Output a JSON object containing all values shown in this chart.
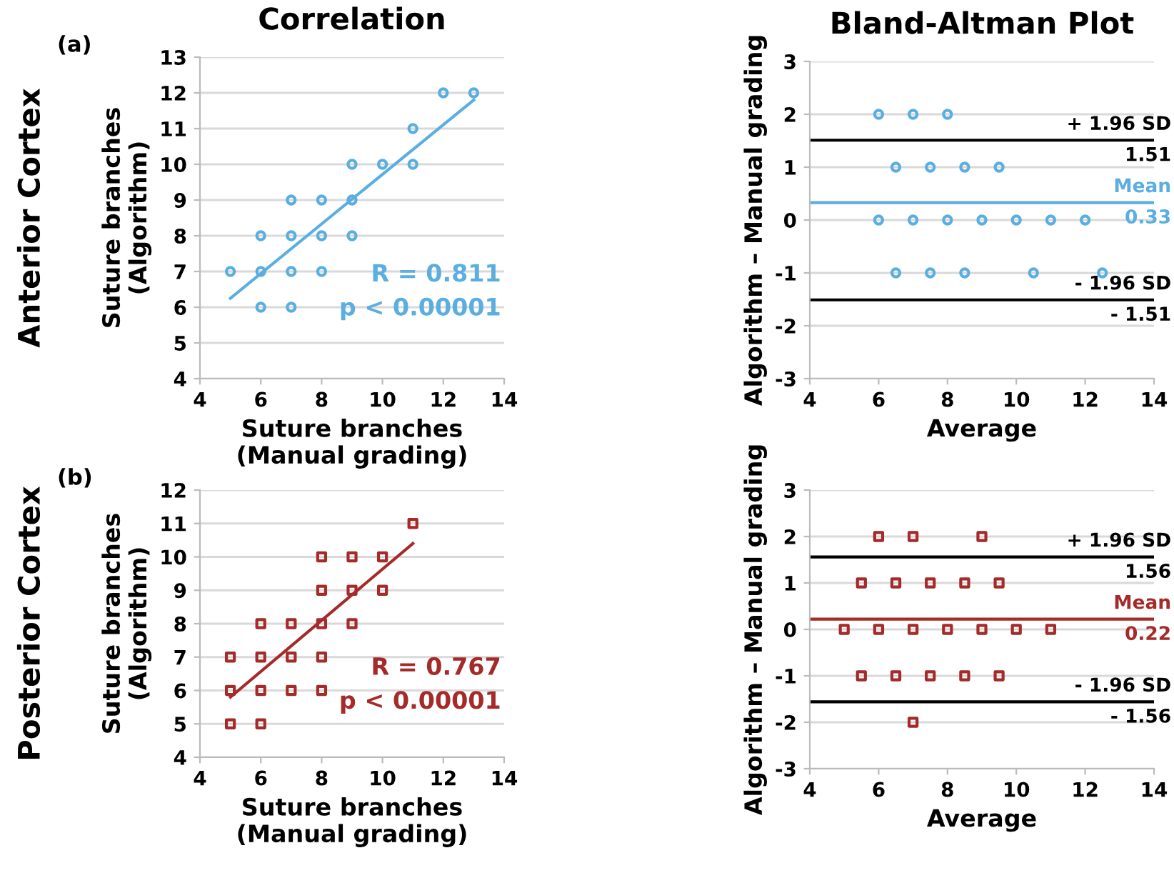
{
  "chart_data": [
    {
      "type": "scatter",
      "title": "Correlation",
      "xlabel": "Suture branches\n(Manual grading)",
      "ylabel": "Suture branches\n(Algorithm)",
      "annotations": [
        "(a)",
        "Anterior Cortex",
        "R = 0.811\np < 0.00001"
      ],
      "xlim": [
        4,
        14
      ],
      "xticks": [
        4,
        6,
        8,
        10,
        12,
        14
      ],
      "ylim": [
        4,
        13
      ],
      "yticks": [
        4,
        5,
        6,
        7,
        8,
        9,
        10,
        11,
        12,
        13
      ],
      "grid": "y",
      "legend": false,
      "series": [
        {
          "marker": "circle",
          "color": "#5aaee0",
          "x": [
            5,
            6,
            6,
            6,
            7,
            7,
            7,
            7,
            8,
            8,
            8,
            9,
            9,
            9,
            10,
            11,
            11,
            12,
            13
          ],
          "values": [
            7,
            8,
            7,
            6,
            9,
            8,
            7,
            6,
            9,
            8,
            7,
            10,
            9,
            8,
            10,
            11,
            10,
            12,
            12
          ]
        },
        {
          "type": "line",
          "marker": "none",
          "line_style": "solid",
          "color": "#5aaee0",
          "x": [
            5,
            13
          ],
          "values": [
            6.25,
            11.8
          ]
        }
      ]
    },
    {
      "type": "scatter",
      "title": "Bland-Altman Plot",
      "xlabel": "Average",
      "ylabel": "Algorithm – Manual grading",
      "xlim": [
        4,
        14
      ],
      "xticks": [
        4,
        6,
        8,
        10,
        12,
        14
      ],
      "ylim": [
        -3,
        3
      ],
      "yticks": [
        -3,
        -2,
        -1,
        0,
        1,
        2,
        3
      ],
      "grid": "y",
      "legend": false,
      "ref_lines": [
        {
          "axis": "y",
          "value": 1.51,
          "label": "+ 1.96 SD\n1.51",
          "color": "#000000"
        },
        {
          "axis": "y",
          "value": 0.33,
          "label": "Mean\n0.33",
          "color": "#5aaee0"
        },
        {
          "axis": "y",
          "value": -1.51,
          "label": "- 1.96 SD\n- 1.51",
          "color": "#000000"
        }
      ],
      "series": [
        {
          "marker": "circle",
          "color": "#5aaee0",
          "x": [
            6,
            7,
            8,
            6.5,
            7.5,
            8.5,
            9.5,
            6,
            7,
            8,
            9,
            10,
            11,
            12,
            6.5,
            7.5,
            8.5,
            10.5,
            12.5
          ],
          "values": [
            2,
            2,
            2,
            1,
            1,
            1,
            1,
            0,
            0,
            0,
            0,
            0,
            0,
            0,
            -1,
            -1,
            -1,
            -1,
            -1
          ]
        }
      ]
    },
    {
      "type": "scatter",
      "xlabel": "Suture branches\n(Manual grading)",
      "ylabel": "Suture branches\n(Algorithm)",
      "annotations": [
        "(b)",
        "Posterior Cortex",
        "R = 0.767\np < 0.00001"
      ],
      "xlim": [
        4,
        14
      ],
      "xticks": [
        4,
        6,
        8,
        10,
        12,
        14
      ],
      "ylim": [
        4,
        12
      ],
      "yticks": [
        4,
        5,
        6,
        7,
        8,
        9,
        10,
        11,
        12
      ],
      "grid": "y",
      "legend": false,
      "series": [
        {
          "marker": "square",
          "color": "#a52a2a",
          "x": [
            5,
            5,
            5,
            6,
            6,
            6,
            6,
            7,
            7,
            7,
            8,
            8,
            8,
            8,
            8,
            9,
            9,
            9,
            10,
            10,
            11
          ],
          "values": [
            7,
            6,
            5,
            8,
            7,
            6,
            5,
            8,
            7,
            6,
            10,
            9,
            8,
            7,
            6,
            10,
            9,
            8,
            10,
            9,
            11
          ]
        },
        {
          "type": "line",
          "marker": "none",
          "line_style": "solid",
          "color": "#a52a2a",
          "x": [
            5,
            11
          ],
          "values": [
            5.8,
            10.4
          ]
        }
      ]
    },
    {
      "type": "scatter",
      "xlabel": "Average",
      "ylabel": "Algorithm – Manual grading",
      "xlim": [
        4,
        14
      ],
      "xticks": [
        4,
        6,
        8,
        10,
        12,
        14
      ],
      "ylim": [
        -3,
        3
      ],
      "yticks": [
        -3,
        -2,
        -1,
        0,
        1,
        2,
        3
      ],
      "grid": "y",
      "legend": false,
      "ref_lines": [
        {
          "axis": "y",
          "value": 1.56,
          "label": "+ 1.96 SD\n1.56",
          "color": "#000000"
        },
        {
          "axis": "y",
          "value": 0.22,
          "label": "Mean\n0.22",
          "color": "#a52a2a"
        },
        {
          "axis": "y",
          "value": -1.56,
          "label": "- 1.96 SD\n- 1.56",
          "color": "#000000"
        }
      ],
      "series": [
        {
          "marker": "square",
          "color": "#a52a2a",
          "x": [
            6,
            7,
            9,
            5.5,
            6.5,
            7.5,
            8.5,
            9.5,
            5,
            6,
            7,
            8,
            9,
            10,
            11,
            5.5,
            6.5,
            7.5,
            8.5,
            9.5,
            7
          ],
          "values": [
            2,
            2,
            2,
            1,
            1,
            1,
            1,
            1,
            0,
            0,
            0,
            0,
            0,
            0,
            0,
            -1,
            -1,
            -1,
            -1,
            -1,
            -2
          ]
        }
      ]
    }
  ]
}
